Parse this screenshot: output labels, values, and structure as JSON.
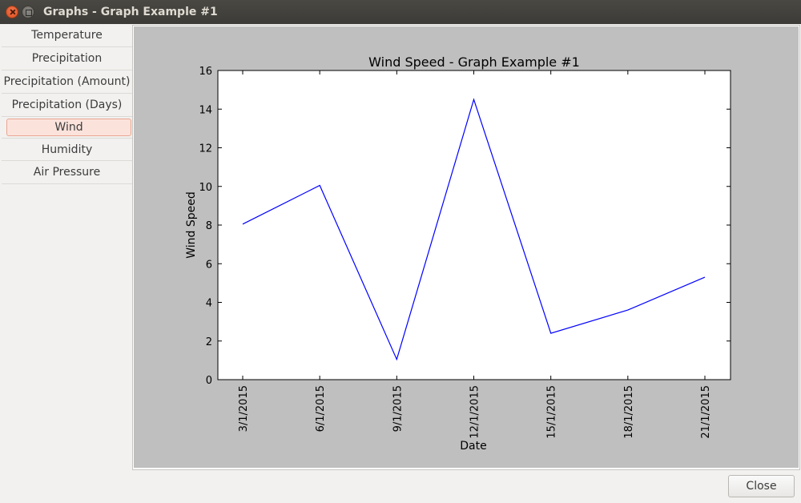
{
  "window": {
    "title": "Graphs - Graph Example #1"
  },
  "sidebar": {
    "items": [
      {
        "label": "Temperature"
      },
      {
        "label": "Precipitation"
      },
      {
        "label": "Precipitation (Amount)"
      },
      {
        "label": "Precipitation (Days)"
      },
      {
        "label": "Wind",
        "selected": true
      },
      {
        "label": "Humidity"
      },
      {
        "label": "Air Pressure"
      }
    ]
  },
  "footer": {
    "close_label": "Close"
  },
  "colors": {
    "line": "#0000ff",
    "panel_bg": "#bfbfbf",
    "selected_bg": "#fbe3dc",
    "selected_border": "#e9a591"
  },
  "chart_data": {
    "type": "line",
    "title": "Wind Speed - Graph Example #1",
    "xlabel": "Date",
    "ylabel": "Wind Speed",
    "categories": [
      "3/1/2015",
      "6/1/2015",
      "9/1/2015",
      "12/1/2015",
      "15/1/2015",
      "18/1/2015",
      "21/1/2015"
    ],
    "values": [
      8.05,
      10.05,
      1.05,
      14.5,
      2.4,
      3.6,
      5.3
    ],
    "ylim": [
      0,
      16
    ],
    "yticks": [
      0,
      2,
      4,
      6,
      8,
      10,
      12,
      14,
      16
    ],
    "grid": false
  }
}
